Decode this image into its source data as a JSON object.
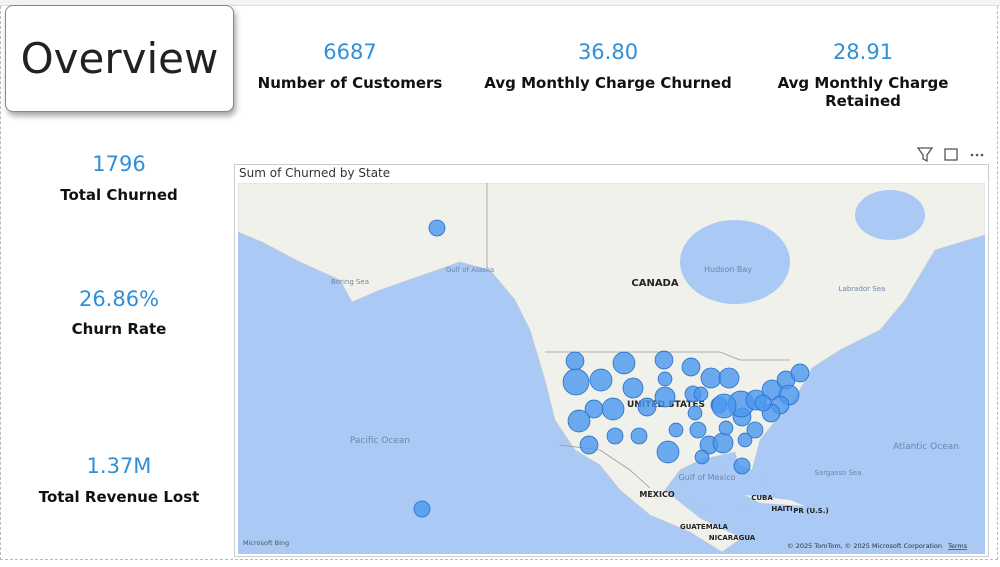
{
  "header": {
    "title": "Overview"
  },
  "kpis": [
    {
      "value": "6687",
      "label": "Number of Customers"
    },
    {
      "value": "36.80",
      "label": "Avg Monthly Charge Churned"
    },
    {
      "value": "28.91",
      "label": "Avg Monthly Charge Retained"
    },
    {
      "value": "1796",
      "label": "Total Churned"
    },
    {
      "value": "26.86%",
      "label": "Churn Rate"
    },
    {
      "value": "1.37M",
      "label": "Total Revenue Lost"
    }
  ],
  "map": {
    "title": "Sum of Churned by State",
    "labels": [
      "Bering Sea",
      "Gulf of Alaska",
      "Hudson Bay",
      "CANADA",
      "Labrador Sea",
      "UNITED STATES",
      "Pacific Ocean",
      "Atlantic Ocean",
      "Sargasso Sea",
      "Gulf of Mexico",
      "MEXICO",
      "CUBA",
      "HAITI",
      "PR (U.S.)",
      "GUATEMALA",
      "NICARAGUA"
    ],
    "attribution": "© 2025 TomTom, © 2025 Microsoft Corporation",
    "terms": "Terms",
    "provider": "Microsoft Bing",
    "bubble_color": "#4a97f0",
    "values": [
      16,
      20,
      42,
      30,
      30,
      20,
      20,
      25,
      12,
      30,
      20,
      30,
      20,
      16,
      16,
      30,
      25,
      16,
      25,
      25,
      16,
      12,
      16,
      12,
      20,
      25,
      12,
      16,
      12,
      20,
      42,
      25,
      25,
      20,
      20,
      25,
      20,
      20,
      16,
      16,
      12,
      16,
      36,
      20,
      12
    ]
  }
}
